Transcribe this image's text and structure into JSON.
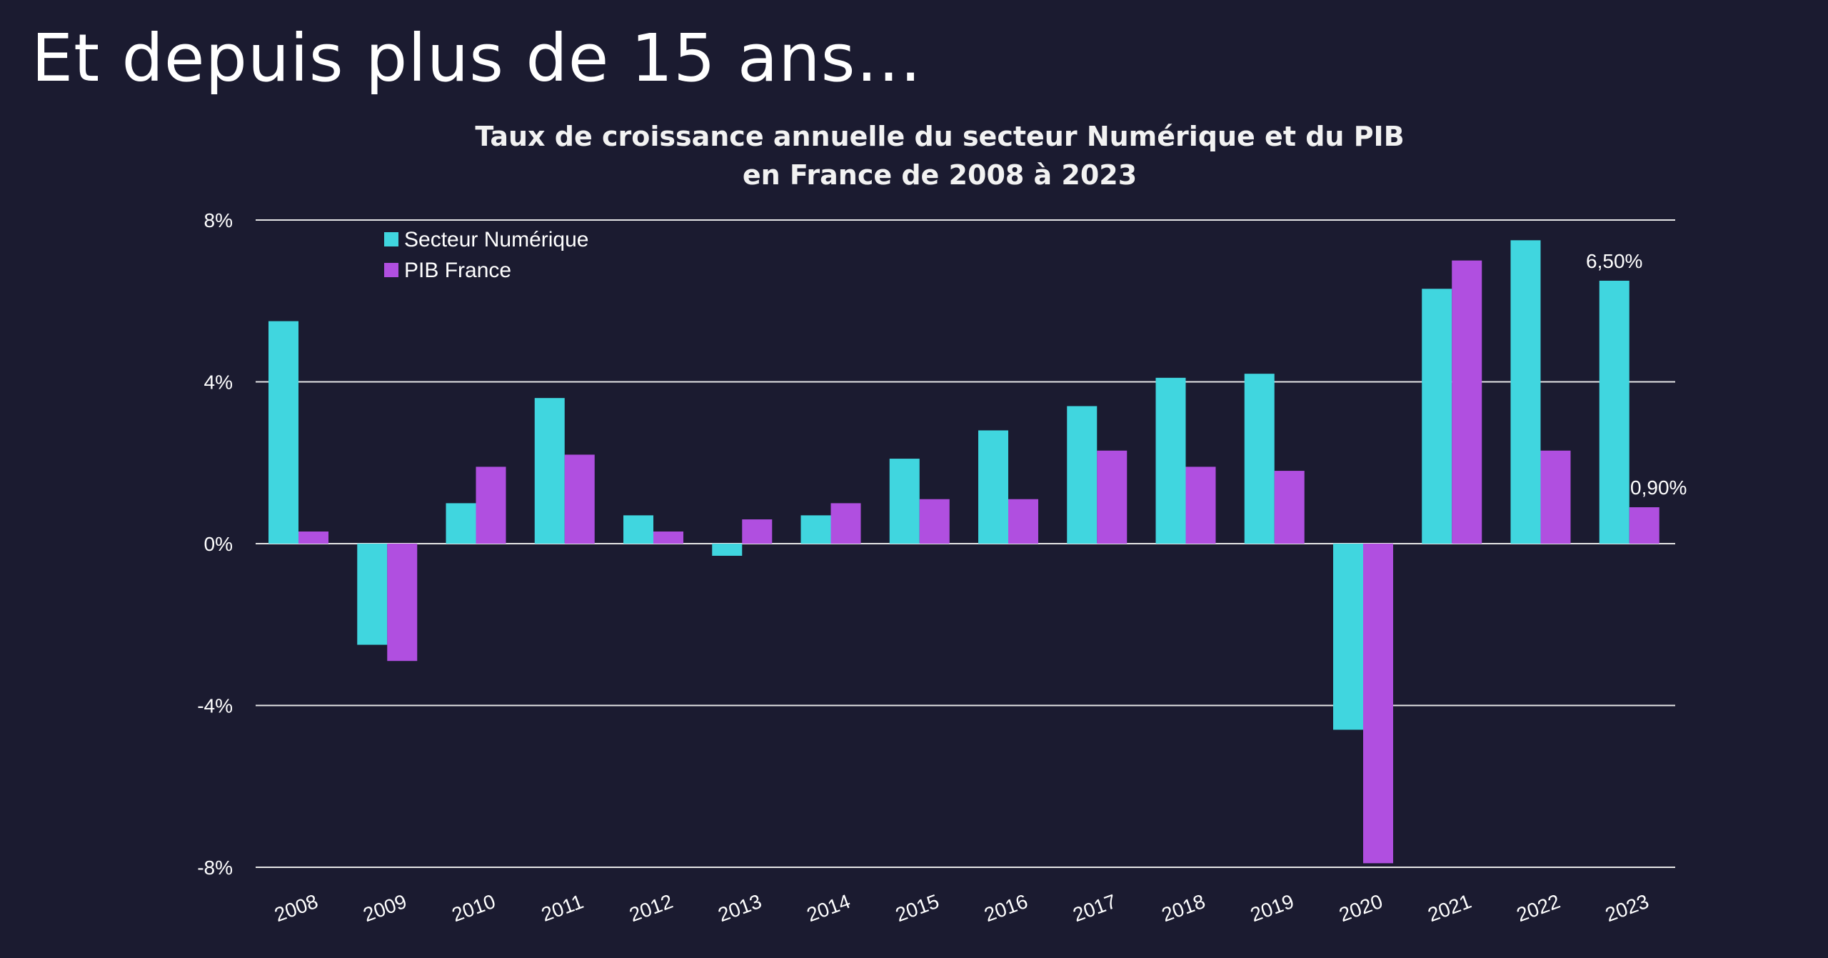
{
  "slide": {
    "title": "Et depuis plus de 15 ans…"
  },
  "colors": {
    "background": "#1b1b30",
    "numerique": "#40d6df",
    "pib": "#b04fe0",
    "gridline": "#e6e6e6"
  },
  "chart_data": {
    "type": "bar",
    "title": "Taux de croissance annuelle du secteur Numérique et du PIB en France de 2008 à 2023",
    "title_lines": [
      "Taux de croissance annuelle du secteur Numérique et du PIB",
      "en France de 2008 à 2023"
    ],
    "xlabel": "",
    "ylabel": "",
    "ylim": [
      -8,
      8
    ],
    "yticks": [
      8,
      4,
      0,
      -4,
      -8
    ],
    "ytick_labels": [
      "8%",
      "4%",
      "0%",
      "-4%",
      "-8%"
    ],
    "grid": true,
    "legend_position": "top-left",
    "categories": [
      "2008",
      "2009",
      "2010",
      "2011",
      "2012",
      "2013",
      "2014",
      "2015",
      "2016",
      "2017",
      "2018",
      "2019",
      "2020",
      "2021",
      "2022",
      "2023"
    ],
    "series": [
      {
        "name": "Secteur Numérique",
        "color": "#40d6df",
        "values": [
          5.5,
          -2.5,
          1.0,
          3.6,
          0.7,
          -0.3,
          0.7,
          2.1,
          2.8,
          3.4,
          4.1,
          4.2,
          -4.6,
          6.3,
          7.5,
          6.5
        ]
      },
      {
        "name": "PIB France",
        "color": "#b04fe0",
        "values": [
          0.3,
          -2.9,
          1.9,
          2.2,
          0.3,
          0.6,
          1.0,
          1.1,
          1.1,
          2.3,
          1.9,
          1.8,
          -7.9,
          7.0,
          2.3,
          0.9
        ]
      }
    ],
    "data_labels": [
      {
        "series": 0,
        "index": 15,
        "text": "6,50%"
      },
      {
        "series": 1,
        "index": 15,
        "text": "0,90%"
      }
    ]
  }
}
